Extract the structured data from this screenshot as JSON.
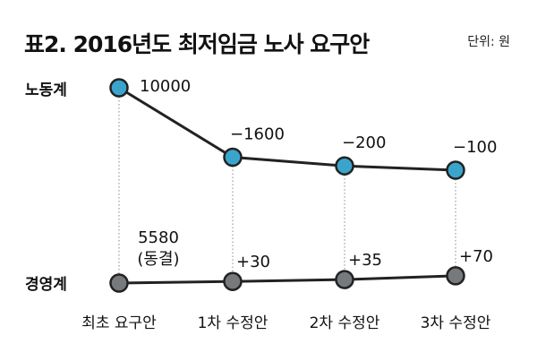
{
  "title": "표2. 2016년도 최저임금 노사 요구안",
  "unit": "단위: 원",
  "chart_data": {
    "type": "line",
    "title": "표2. 2016년도 최저임금 노사 요구안",
    "unit": "단위: 원",
    "categories": [
      "최초 요구안",
      "1차 수정안",
      "2차 수정안",
      "3차 수정안"
    ],
    "series": [
      {
        "name": "노동계",
        "color": "#3aa5cc",
        "point_labels": [
          "10000",
          "−1600",
          "−200",
          "−100"
        ],
        "values": [
          10000,
          8400,
          8200,
          8100
        ]
      },
      {
        "name": "경영계",
        "color": "#777a7d",
        "point_labels": [
          "5580\n(동결)",
          "+30",
          "+35",
          "+70"
        ],
        "values": [
          5580,
          5610,
          5645,
          5715
        ]
      }
    ],
    "legend": "left",
    "grid": false
  }
}
